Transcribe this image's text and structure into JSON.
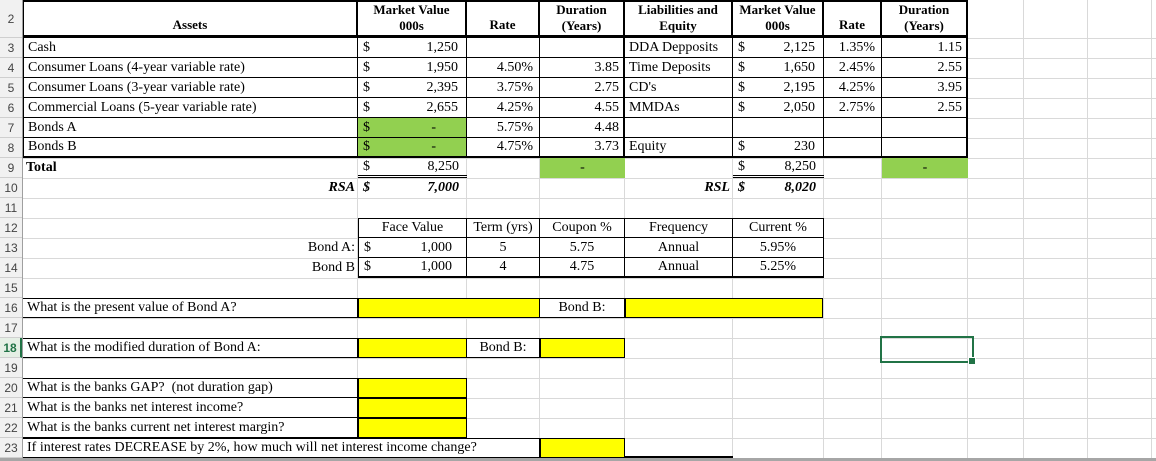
{
  "colors": {
    "green_fill": "#92D050",
    "yellow_fill": "#FFFF00",
    "selection_green": "#217346",
    "gridline": "#d9d9d9"
  },
  "currency_symbol": "$",
  "sheet": {
    "row_numbers": [
      "2",
      "3",
      "4",
      "5",
      "6",
      "7",
      "8",
      "9",
      "10",
      "11",
      "12",
      "13",
      "14",
      "15",
      "16",
      "17",
      "18",
      "19",
      "20",
      "21",
      "22",
      "23"
    ],
    "selected_row_number": "18"
  },
  "assets_table": {
    "header": {
      "assets": "Assets",
      "mv1": "Market Value",
      "mv2": "000s",
      "rate": "Rate",
      "dur1": "Duration",
      "dur2": "(Years)"
    },
    "rows": [
      {
        "name": "Cash",
        "cur": "$",
        "mv": "1,250",
        "rate": "",
        "dur": ""
      },
      {
        "name": "Consumer Loans (4-year variable rate)",
        "cur": "$",
        "mv": "1,950",
        "rate": "4.50%",
        "dur": "3.85"
      },
      {
        "name": "Consumer Loans (3-year variable rate)",
        "cur": "$",
        "mv": "2,395",
        "rate": "3.75%",
        "dur": "2.75"
      },
      {
        "name": "Commercial Loans (5-year variable rate)",
        "cur": "$",
        "mv": "2,655",
        "rate": "4.25%",
        "dur": "4.55"
      },
      {
        "name": "Bonds A",
        "cur": "$",
        "mv": "-",
        "rate": "5.75%",
        "dur": "4.48"
      },
      {
        "name": "Bonds B",
        "cur": "$",
        "mv": "-",
        "rate": "4.75%",
        "dur": "3.73"
      }
    ],
    "total_label": "Total",
    "total_cur": "$",
    "total_mv": "8,250",
    "total_dur": "-",
    "rsa_label": "RSA",
    "rsa_cur": "$",
    "rsa_value": "7,000"
  },
  "liabilities_table": {
    "header": {
      "le1": "Liabilities and",
      "le2": "Equity",
      "mv1": "Market Value",
      "mv2": "000s",
      "rate": "Rate",
      "dur1": "Duration",
      "dur2": "(Years)"
    },
    "rows": [
      {
        "name": "DDA Depposits",
        "cur": "$",
        "mv": "2,125",
        "rate": "1.35%",
        "dur": "1.15"
      },
      {
        "name": "Time Deposits",
        "cur": "$",
        "mv": "1,650",
        "rate": "2.45%",
        "dur": "2.55"
      },
      {
        "name": "CD's",
        "cur": "$",
        "mv": "2,195",
        "rate": "4.25%",
        "dur": "3.95"
      },
      {
        "name": "MMDAs",
        "cur": "$",
        "mv": "2,050",
        "rate": "2.75%",
        "dur": "2.55"
      },
      {
        "name": "",
        "cur": "",
        "mv": "",
        "rate": "",
        "dur": ""
      },
      {
        "name": "Equity",
        "cur": "$",
        "mv": "230",
        "rate": "",
        "dur": ""
      }
    ],
    "total_cur": "$",
    "total_mv": "8,250",
    "total_dur": "-",
    "rsl_label": "RSL",
    "rsl_cur": "$",
    "rsl_value": "8,020"
  },
  "bond_table": {
    "headers": {
      "face": "Face Value",
      "term": "Term (yrs)",
      "coupon": "Coupon %",
      "frequency": "Frequency",
      "current": "Current %"
    },
    "rows": [
      {
        "label": "Bond A:",
        "cur": "$",
        "face": "1,000",
        "term": "5",
        "coupon": "5.75",
        "frequency": "Annual",
        "current": "5.95%"
      },
      {
        "label": "Bond B",
        "cur": "$",
        "face": "1,000",
        "term": "4",
        "coupon": "4.75",
        "frequency": "Annual",
        "current": "5.25%"
      }
    ]
  },
  "questions": {
    "q16": {
      "text": "What is the present value of Bond A?",
      "bond_b": "Bond B:"
    },
    "q18": {
      "text": "What is the modified duration of Bond A:",
      "bond_b": "Bond B:"
    },
    "q20": "What is the banks GAP?  (not duration gap)",
    "q21": "What is the banks net interest income?",
    "q22": "What is the banks current net interest margin?",
    "q23": "If interest rates DECREASE by 2%, how much will net interest income change?"
  }
}
